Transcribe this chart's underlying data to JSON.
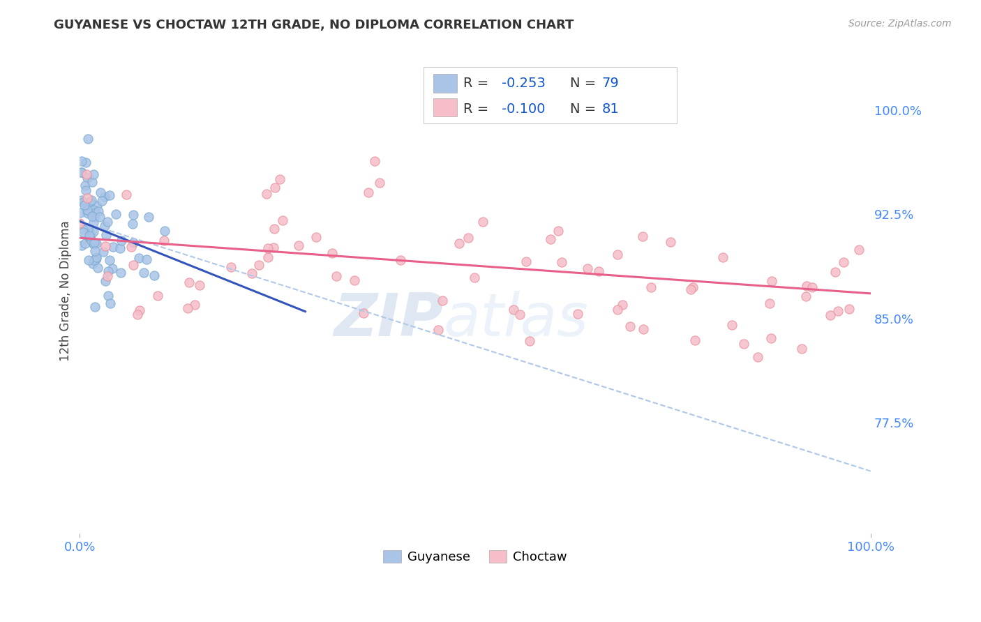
{
  "title": "GUYANESE VS CHOCTAW 12TH GRADE, NO DIPLOMA CORRELATION CHART",
  "source": "Source: ZipAtlas.com",
  "ylabel": "12th Grade, No Diploma",
  "watermark": "ZIPatlas",
  "r_blue": "-0.253",
  "n_blue": "79",
  "r_pink": "-0.100",
  "n_pink": "81",
  "label_blue": "Guyanese",
  "label_pink": "Choctaw",
  "xlim": [
    0.0,
    1.0
  ],
  "ylim": [
    0.695,
    1.045
  ],
  "yticks": [
    0.775,
    0.85,
    0.925,
    1.0
  ],
  "ytick_labels": [
    "77.5%",
    "85.0%",
    "92.5%",
    "100.0%"
  ],
  "xticks": [
    0.0,
    1.0
  ],
  "xtick_labels": [
    "0.0%",
    "100.0%"
  ],
  "background_color": "#ffffff",
  "grid_color": "#dddddd",
  "blue_dot_color": "#aac4e8",
  "blue_dot_edge": "#7aaad0",
  "pink_dot_color": "#f5bec8",
  "pink_dot_edge": "#e8909a",
  "blue_line_color": "#3355bb",
  "pink_line_color": "#e8608a",
  "dashed_line_color": "#b0c8e8",
  "title_color": "#333333",
  "source_color": "#999999",
  "right_tick_color": "#4488ff",
  "bottom_tick_color": "#4488ff",
  "legend_text_color": "#333333",
  "legend_r_color": "#1155cc",
  "legend_n_color": "#1155cc",
  "blue_line_x": [
    0.0,
    0.285
  ],
  "blue_line_y": [
    0.92,
    0.855
  ],
  "pink_line_x": [
    0.0,
    1.0
  ],
  "pink_line_y": [
    0.908,
    0.868
  ],
  "dashed_line_x": [
    0.0,
    1.0
  ],
  "dashed_line_y": [
    0.92,
    0.74
  ]
}
